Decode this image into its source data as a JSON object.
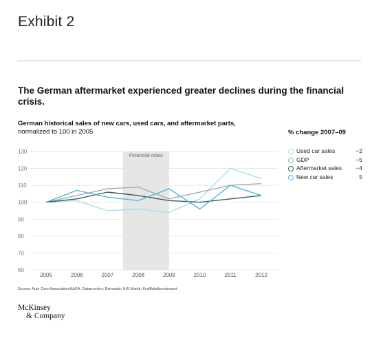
{
  "header": {
    "exhibit": "Exhibit 2"
  },
  "title": "The German aftermarket experienced greater declines during the financial crisis.",
  "subtitle": {
    "bold": "German historical sales of new cars, used cars, and aftermarket parts,",
    "normal": "normalized to 100 in 2005"
  },
  "legend": {
    "title": "% change 2007–09",
    "items": [
      {
        "name": "Used car sales",
        "value": "−2",
        "color": "#a6e0ee"
      },
      {
        "name": "GDP",
        "value": "−5",
        "color": "#a8a8a8"
      },
      {
        "name": "Aftermarket sales",
        "value": "−4",
        "color": "#3b5763"
      },
      {
        "name": "New car sales",
        "value": "5",
        "color": "#4bb8d9"
      }
    ]
  },
  "source": "Source: Auto Care Association/AASA; Datamonitor; Edmunds; IHS Markit; Kraftfahrtbundesamt",
  "logo": {
    "line1": "McKinsey",
    "line2": "& Company"
  },
  "chart_data": {
    "type": "line",
    "x": [
      2005,
      2006,
      2007,
      2008,
      2009,
      2010,
      2011,
      2012
    ],
    "xticks": [
      "2005",
      "2006",
      "2007",
      "2008",
      "2009",
      "2010",
      "2011",
      "2012"
    ],
    "ylim": [
      60,
      130
    ],
    "yticks": [
      "60",
      "70",
      "80",
      "90",
      "100",
      "110",
      "120",
      "130"
    ],
    "grid": true,
    "shaded_region": {
      "label": "Financial crisis",
      "x_start": 2007.5,
      "x_end": 2009
    },
    "series": [
      {
        "name": "Used car sales",
        "color": "#a6e0ee",
        "values": [
          100,
          101,
          95,
          96,
          94,
          102,
          120,
          114
        ]
      },
      {
        "name": "GDP",
        "color": "#a8a8a8",
        "values": [
          100,
          104,
          108,
          109,
          102,
          106,
          110,
          111
        ]
      },
      {
        "name": "Aftermarket sales",
        "color": "#3b5763",
        "values": [
          100,
          102,
          106,
          104,
          101,
          100,
          102,
          104
        ]
      },
      {
        "name": "New car sales",
        "color": "#4bb8d9",
        "values": [
          100,
          107,
          103,
          101,
          108,
          96,
          110,
          104
        ]
      }
    ]
  }
}
